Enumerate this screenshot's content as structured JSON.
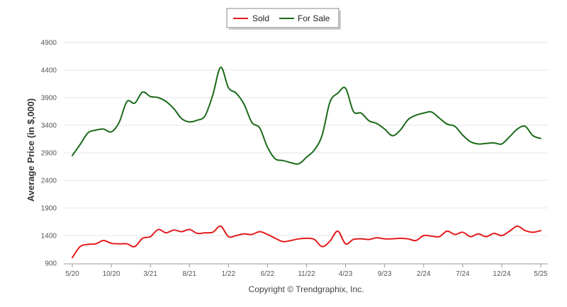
{
  "chart_data": {
    "type": "line",
    "title": "",
    "xlabel": "",
    "ylabel": "Average Price (in $,000)",
    "ylim": [
      900,
      4900
    ],
    "yticks": [
      900,
      1400,
      1900,
      2400,
      2900,
      3400,
      3900,
      4400,
      4900
    ],
    "grid": "horizontal",
    "legend_position": "top-center",
    "x_tick_labels": [
      "5/20",
      "10/20",
      "3/21",
      "8/21",
      "1/22",
      "6/22",
      "11/22",
      "4/23",
      "9/23",
      "2/24",
      "7/24",
      "12/24",
      "5/25"
    ],
    "x_tick_index": [
      0,
      5,
      10,
      15,
      20,
      25,
      30,
      35,
      40,
      45,
      50,
      55,
      60
    ],
    "footer": "Copyright © Trendgraphix, Inc.",
    "series": [
      {
        "name": "Sold",
        "color": "#e41a1c",
        "values": [
          1000,
          1200,
          1240,
          1250,
          1310,
          1260,
          1250,
          1250,
          1200,
          1350,
          1380,
          1510,
          1450,
          1500,
          1470,
          1510,
          1440,
          1450,
          1460,
          1570,
          1380,
          1400,
          1430,
          1420,
          1470,
          1420,
          1350,
          1290,
          1310,
          1340,
          1350,
          1330,
          1200,
          1300,
          1480,
          1250,
          1330,
          1340,
          1330,
          1360,
          1340,
          1340,
          1350,
          1340,
          1310,
          1400,
          1390,
          1380,
          1480,
          1420,
          1460,
          1380,
          1430,
          1380,
          1440,
          1400,
          1480,
          1570,
          1490,
          1460,
          1490
        ]
      },
      {
        "name": "For Sale",
        "color": "#1a6a1a",
        "values": [
          2850,
          3050,
          3260,
          3310,
          3330,
          3280,
          3450,
          3830,
          3800,
          4000,
          3920,
          3900,
          3830,
          3700,
          3520,
          3460,
          3490,
          3570,
          3950,
          4450,
          4080,
          3980,
          3780,
          3450,
          3350,
          3000,
          2790,
          2760,
          2720,
          2700,
          2820,
          2950,
          3220,
          3820,
          3980,
          4070,
          3650,
          3620,
          3480,
          3430,
          3330,
          3210,
          3310,
          3500,
          3580,
          3620,
          3640,
          3530,
          3420,
          3380,
          3220,
          3100,
          3060,
          3070,
          3080,
          3060,
          3190,
          3330,
          3380,
          3210,
          3160
        ]
      }
    ]
  }
}
